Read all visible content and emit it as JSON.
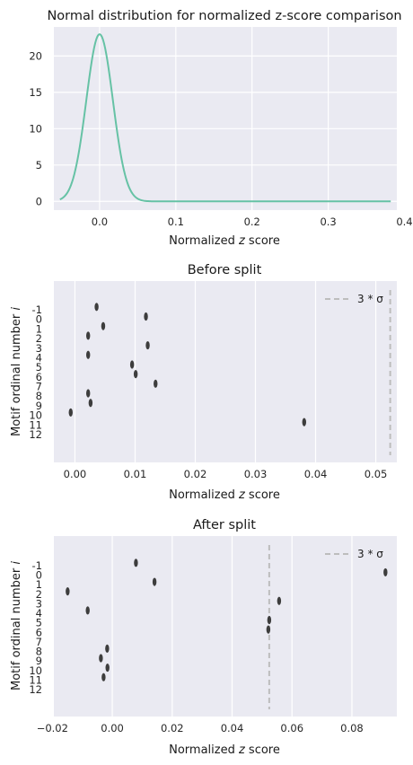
{
  "chart_data": [
    {
      "type": "line",
      "title": "Normal distribution for normalized z-score comparison",
      "xlabel": "Normalized z score",
      "ylabel": "",
      "xlim": [
        -0.06,
        0.39
      ],
      "ylim": [
        -1.2,
        24
      ],
      "xticks": [
        0.0,
        0.1,
        0.2,
        0.3,
        0.4
      ],
      "xtick_labels": [
        "0.0",
        "0.1",
        "0.2",
        "0.3",
        "0.4"
      ],
      "yticks": [
        0,
        5,
        10,
        15,
        20
      ],
      "ytick_labels": [
        "0",
        "5",
        "10",
        "15",
        "20"
      ],
      "grid": true,
      "series": [
        {
          "mean": 0.0,
          "sd": 0.0174,
          "x_range": [
            -0.052,
            0.382
          ],
          "peak": 23,
          "color": "#66c2a5"
        }
      ]
    },
    {
      "type": "scatter",
      "title": "Before split",
      "xlabel": "Normalized z score",
      "ylabel": "Motif ordinal number i",
      "xlim": [
        -0.0035,
        0.0535
      ],
      "xticks": [
        0.0,
        0.01,
        0.02,
        0.03,
        0.04,
        0.05
      ],
      "xtick_labels": [
        "0.00",
        "0.01",
        "0.02",
        "0.03",
        "0.04",
        "0.05"
      ],
      "categories": [
        "-1",
        "0",
        "1",
        "2",
        "3",
        "4",
        "5",
        "6",
        "7",
        "8",
        "9",
        "10",
        "11",
        "12"
      ],
      "grid": true,
      "points": [
        {
          "category": "-1",
          "x": 0.0036
        },
        {
          "category": "0",
          "x": 0.0118
        },
        {
          "category": "1",
          "x": 0.0047
        },
        {
          "category": "2",
          "x": 0.0022
        },
        {
          "category": "3",
          "x": 0.0121
        },
        {
          "category": "4",
          "x": 0.0022
        },
        {
          "category": "5",
          "x": 0.0095
        },
        {
          "category": "6",
          "x": 0.0101
        },
        {
          "category": "7",
          "x": 0.0134
        },
        {
          "category": "8",
          "x": 0.0022
        },
        {
          "category": "9",
          "x": 0.0026
        },
        {
          "category": "10",
          "x": -0.0007
        },
        {
          "category": "11",
          "x": 0.0381
        }
      ],
      "threshold": {
        "x": 0.0524,
        "label": "3 * σ",
        "color": "#bdbdbd"
      },
      "legend": "top-right",
      "point_color": "#3d3d3d"
    },
    {
      "type": "scatter",
      "title": "After split",
      "xlabel": "Normalized z score",
      "ylabel": "Motif ordinal number i",
      "xlim": [
        -0.0195,
        0.095
      ],
      "xticks": [
        -0.02,
        0.0,
        0.02,
        0.04,
        0.06,
        0.08
      ],
      "xtick_labels": [
        "−0.02",
        "0.00",
        "0.02",
        "0.04",
        "0.06",
        "0.08"
      ],
      "categories": [
        "-1",
        "0",
        "1",
        "2",
        "3",
        "4",
        "5",
        "6",
        "7",
        "8",
        "9",
        "10",
        "11",
        "12"
      ],
      "grid": true,
      "points": [
        {
          "category": "-1",
          "x": 0.0079
        },
        {
          "category": "0",
          "x": 0.0912
        },
        {
          "category": "1",
          "x": 0.0141
        },
        {
          "category": "2",
          "x": -0.0149
        },
        {
          "category": "3",
          "x": 0.0557
        },
        {
          "category": "4",
          "x": -0.0082
        },
        {
          "category": "5",
          "x": 0.0524
        },
        {
          "category": "6",
          "x": 0.0521
        },
        {
          "category": "8",
          "x": -0.0017
        },
        {
          "category": "9",
          "x": -0.0038
        },
        {
          "category": "10",
          "x": -0.0016
        },
        {
          "category": "11",
          "x": -0.0029
        }
      ],
      "threshold": {
        "x": 0.0524,
        "label": "3 * σ",
        "color": "#bdbdbd"
      },
      "legend": "top-right",
      "point_color": "#3d3d3d"
    }
  ]
}
